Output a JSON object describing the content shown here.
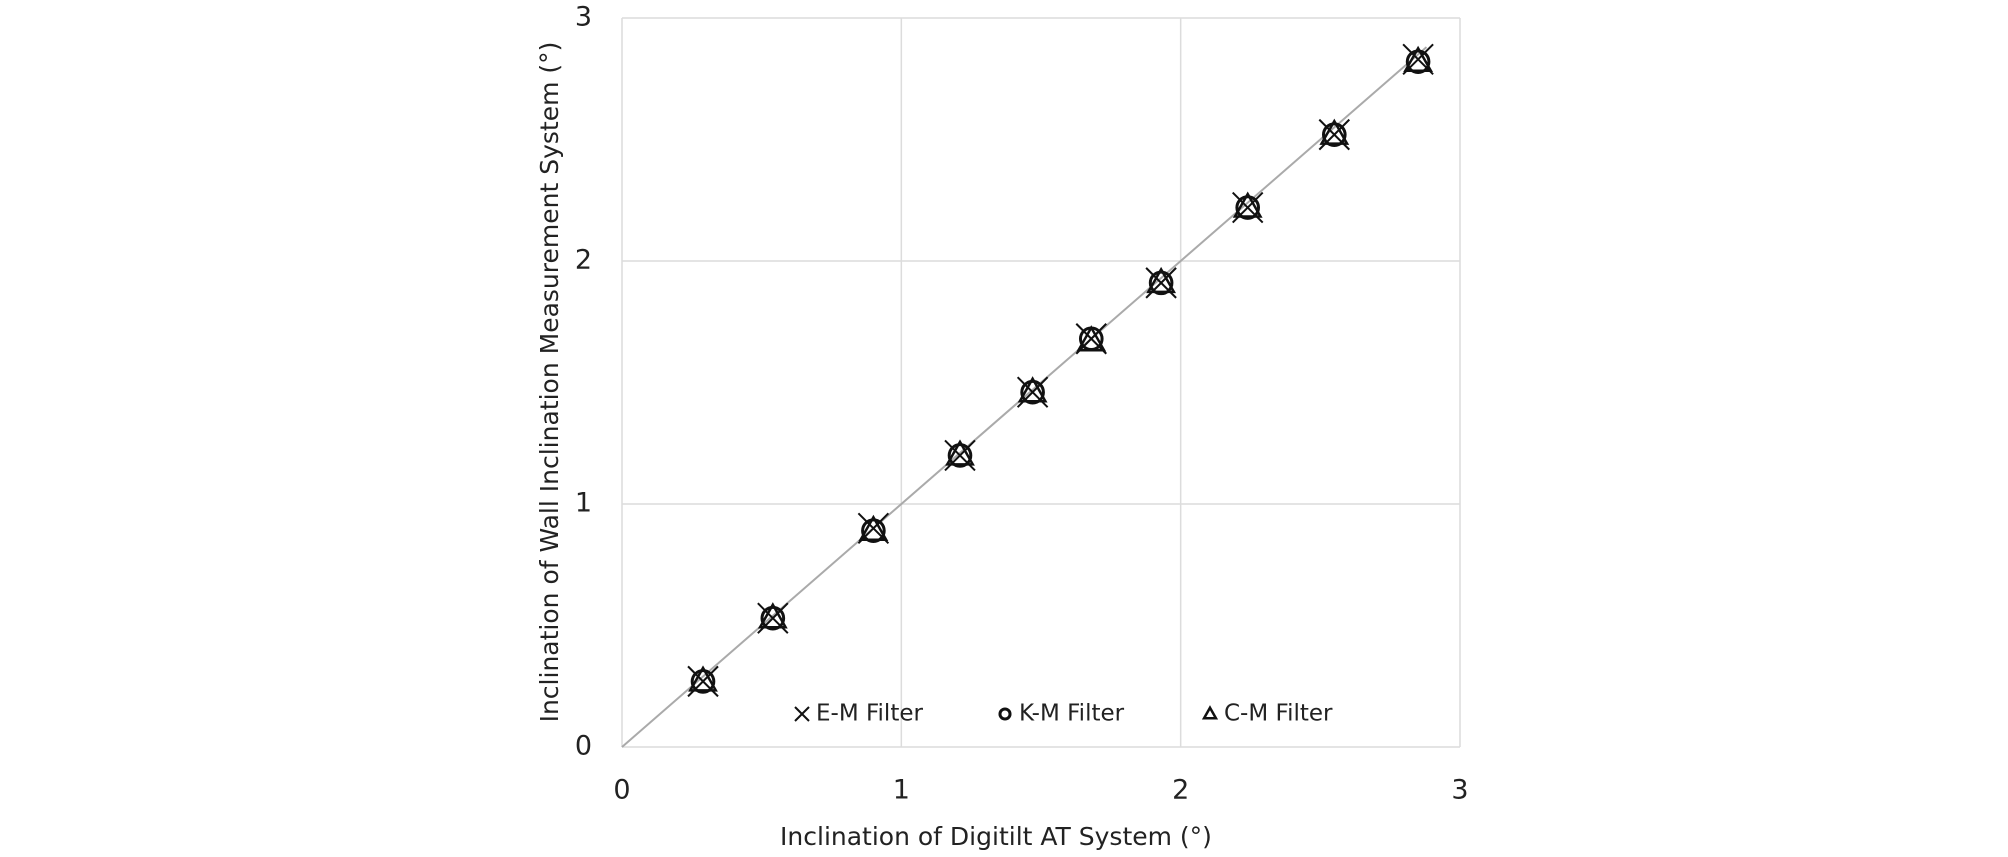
{
  "chart_data": {
    "type": "scatter",
    "x_label": "Inclination of Digitilt AT System (°)",
    "y_label": "Inclination of Wall Inclination Measurement System (°)",
    "xlim": [
      0,
      3
    ],
    "ylim": [
      0,
      3
    ],
    "xticks": [
      0,
      1,
      2,
      3
    ],
    "yticks": [
      0,
      1,
      2,
      3
    ],
    "grid": true,
    "reference_line": {
      "x": [
        0,
        2.88
      ],
      "y": [
        0,
        2.88
      ],
      "color": "#aaaaaa"
    },
    "series": [
      {
        "name": "E-M Filter",
        "marker": "x",
        "color": "#111111",
        "x": [
          0.29,
          0.54,
          0.9,
          1.21,
          1.47,
          1.68,
          1.93,
          2.24,
          2.55,
          2.85
        ],
        "values": [
          0.27,
          0.53,
          0.9,
          1.2,
          1.46,
          1.68,
          1.91,
          2.22,
          2.52,
          2.83
        ]
      },
      {
        "name": "K-M Filter",
        "marker": "circle",
        "color": "#111111",
        "x": [
          0.29,
          0.54,
          0.9,
          1.21,
          1.47,
          1.68,
          1.93,
          2.24,
          2.55,
          2.85
        ],
        "values": [
          0.27,
          0.53,
          0.89,
          1.2,
          1.46,
          1.68,
          1.91,
          2.22,
          2.52,
          2.82
        ]
      },
      {
        "name": "C-M Filter",
        "marker": "triangle",
        "color": "#111111",
        "x": [
          0.29,
          0.54,
          0.9,
          1.21,
          1.47,
          1.68,
          1.93,
          2.24,
          2.55,
          2.85
        ],
        "values": [
          0.27,
          0.53,
          0.89,
          1.2,
          1.46,
          1.67,
          1.91,
          2.22,
          2.52,
          2.82
        ]
      }
    ]
  }
}
